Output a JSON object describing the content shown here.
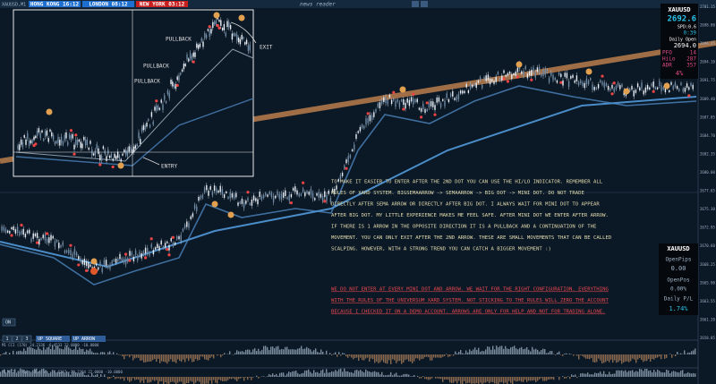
{
  "window": {
    "symbol": "XAUUSD,M1"
  },
  "clocks": [
    "HONG KONG 16:12",
    "LONDON 08:12",
    "NEW YORK 03:12"
  ],
  "news": "news reader",
  "info_panel": {
    "symbol": "XAUUSD",
    "price": "2692.6",
    "spread": "SPD:0.6",
    "timer": "0:39",
    "open_label": "Daily Open",
    "open_value": "2694.0",
    "rows": [
      [
        "PFO",
        "14"
      ],
      [
        "HiLo",
        "287"
      ],
      [
        "ADR",
        "357"
      ]
    ],
    "percent": "4%"
  },
  "annotations": {
    "pullbacks": [
      "PULLBACK",
      "PULLBACK",
      "PULLBACK"
    ],
    "entry": "ENTRY",
    "exit": "EXIT"
  },
  "explanation": {
    "lines": [
      "TO MAKE IT EASIER TO ENTER AFTER THE 2ND DOT YOU CAN USE THE HI/LO INDICATOR. REMEMBER ALL",
      "RULES OF XARD SYSTEM.  BIGSEMAARROW -> SEMAARROW -> BIG DOT -> MINI DOT. DO NOT TRADE",
      "DIRECTLY AFTER SEMA ARROW OR DIRECTLY AFTER BIG DOT. I ALWAYS WAIT FOR MINI DOT TO APPEAR",
      "AFTER BIG DOT. MY LITTLE EXPERIENCE MAKES ME FEEL SAFE.  AFTER MINI DOT WE ENTER AFTER ARROW.",
      "IF THERE IS 1 ARROW IN THE OPPOSITE DIRECTION IT IS A PULLBACK AND A CONTINUATION OF THE",
      "MOVEMENT. YOU CAN ONLY EXIT AFTER THE 2ND ARROW. THESE ARE SMALL MOVEMENTS THAT CAN BE CALLED",
      "SCALPING. HOWEVER, WITH A STRONG TREND YOU CAN CATCH A BIGGER MOVEMENT :)"
    ],
    "warning_lines": [
      "WE DO NOT ENTER AT EVERY MINI DOT AND ARROW. WE WAIT FOR THE RIGHT CONFIGURATION. EVERYTHING",
      "WITH THE RULES OF THE UNIVERSUM XARD SYSTEM. NOT STICKING TO THE RULES WILL ZERO THE ACCOUNT",
      "BECAUSE I CHECKED IT ON A DEMO ACCOUNT. ARROWS ARE ONLY FOR HELP AND NOT FOR TRADING ALONE."
    ]
  },
  "pl_panel": {
    "symbol": "XAUUSD",
    "open_pips_label": "OpenPips",
    "open_pips": "0.00",
    "open_pos_label": "OpenPos",
    "open_pos": "0.00%",
    "daily_label": "Daily P/L",
    "daily": "1.74%"
  },
  "buttons": {
    "on": "ON",
    "square": "UP SQUARE",
    "arrow": "UP ARROW",
    "small": [
      "1",
      "2",
      "3"
    ]
  },
  "indicators": [
    "M1 CCI (170) 24.2336 -6.4533 22.0000 -10.0000",
    "M1 CCI (100) -14.4267 -14.6267 -29.2364 22.0000 -10.0000"
  ],
  "price_axis": [
    "2701.15",
    "2698.80",
    "2696.45",
    "2694.10",
    "2691.75",
    "2689.40",
    "2687.05",
    "2684.70",
    "2682.35",
    "2680.00",
    "2677.65",
    "2675.30",
    "2672.95",
    "2670.60",
    "2668.25",
    "2665.90",
    "2663.55",
    "2661.20",
    "2658.85"
  ]
}
